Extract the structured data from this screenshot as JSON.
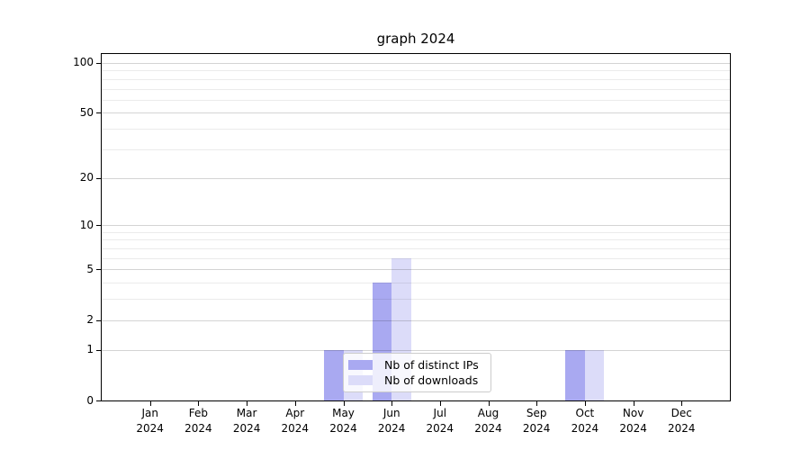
{
  "chart_data": {
    "type": "bar",
    "title": "graph 2024",
    "x_tick_labels": [
      [
        "Jan",
        "2024"
      ],
      [
        "Feb",
        "2024"
      ],
      [
        "Mar",
        "2024"
      ],
      [
        "Apr",
        "2024"
      ],
      [
        "May",
        "2024"
      ],
      [
        "Jun",
        "2024"
      ],
      [
        "Jul",
        "2024"
      ],
      [
        "Aug",
        "2024"
      ],
      [
        "Sep",
        "2024"
      ],
      [
        "Oct",
        "2024"
      ],
      [
        "Nov",
        "2024"
      ],
      [
        "Dec",
        "2024"
      ]
    ],
    "series": [
      {
        "name": "Nb of distinct IPs",
        "color": "#a9a9f1",
        "values": [
          0,
          0,
          0,
          0,
          1,
          4,
          0,
          0,
          0,
          1,
          0,
          0
        ]
      },
      {
        "name": "Nb of downloads",
        "color": "#dcdcf9",
        "values": [
          0,
          0,
          0,
          0,
          1,
          6,
          0,
          0,
          0,
          1,
          0,
          0
        ]
      }
    ],
    "yscale": "log1p",
    "ylim": [
      0,
      113
    ],
    "yticks_major": [
      0,
      1,
      2,
      5,
      10,
      20,
      50,
      100
    ],
    "yticks_minor": [
      3,
      4,
      6,
      7,
      8,
      9,
      30,
      40,
      60,
      70,
      80,
      90
    ],
    "grid": "horizontal",
    "legend_position": "lower center"
  },
  "colors": {
    "background": "#ffffff",
    "axis": "#000000",
    "grid_major": "#d4d4d4",
    "grid_minor": "#ebebeb",
    "legend_border": "#cccccc",
    "bar_distinct_ips": "#a9a9f1",
    "bar_downloads": "#dcdcf9"
  }
}
